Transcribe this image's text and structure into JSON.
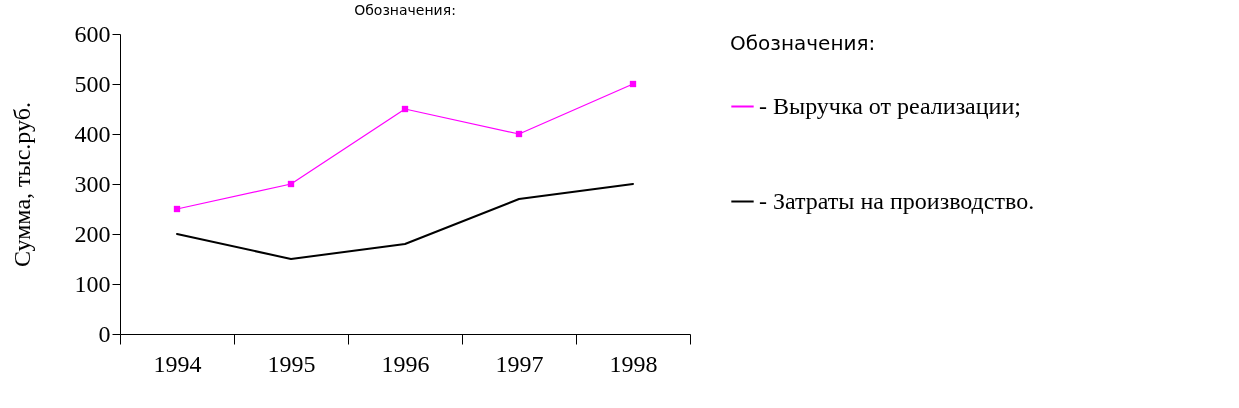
{
  "chart_data": {
    "type": "line",
    "title": "Обозначения:",
    "ylabel": "Сумма,  тыс.руб.",
    "legend_title": "Обозначения:",
    "categories": [
      "1994",
      "1995",
      "1996",
      "1997",
      "1998"
    ],
    "series": [
      {
        "name": "- Выручка от реализации;",
        "color": "#ff00ff",
        "marker": "square",
        "values": [
          250,
          300,
          450,
          400,
          500
        ]
      },
      {
        "name": "- Затраты на производство.",
        "color": "#000000",
        "marker": "none",
        "values": [
          200,
          150,
          180,
          270,
          300
        ]
      }
    ],
    "ylim": [
      0,
      600
    ],
    "yticks": [
      0,
      100,
      200,
      300,
      400,
      500,
      600
    ],
    "grid": false,
    "legend": "right"
  }
}
